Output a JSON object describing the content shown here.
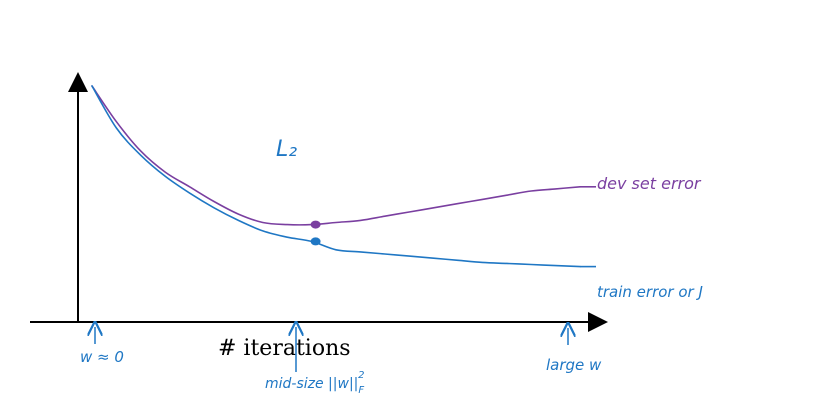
{
  "chart_data": {
    "type": "line",
    "title": "",
    "xlabel": "# iterations",
    "ylabel": "",
    "annotation": "L₂",
    "x_annotations": {
      "start": "w ≈ 0",
      "middle": "mid-size ||w||",
      "middle_sub": "F",
      "middle_sup": "2",
      "end": "large w"
    },
    "grid": false,
    "series": [
      {
        "name": "dev set error",
        "color": "#7a3fa0",
        "x": [
          0,
          5,
          10,
          15,
          20,
          25,
          30,
          35,
          40,
          45,
          50,
          55,
          60,
          65,
          70,
          75,
          80,
          85,
          90,
          95,
          100
        ],
        "y": [
          100,
          83,
          69,
          59,
          52,
          45,
          39,
          35,
          34,
          34,
          35,
          36,
          38,
          40,
          42,
          44,
          46,
          48,
          50,
          51,
          52
        ],
        "marker_x": 45
      },
      {
        "name": "train error or J",
        "color": "#1f77c4",
        "x": [
          0,
          5,
          10,
          15,
          20,
          25,
          30,
          35,
          40,
          45,
          50,
          55,
          60,
          65,
          70,
          75,
          80,
          85,
          90,
          95,
          100
        ],
        "y": [
          100,
          80,
          67,
          57,
          49,
          42,
          36,
          31,
          28,
          26,
          22,
          21,
          20,
          19,
          18,
          17,
          16,
          15.5,
          15,
          14.5,
          14
        ],
        "marker_x": 45
      }
    ],
    "xlim": [
      0,
      100
    ],
    "ylim": [
      0,
      100
    ]
  }
}
